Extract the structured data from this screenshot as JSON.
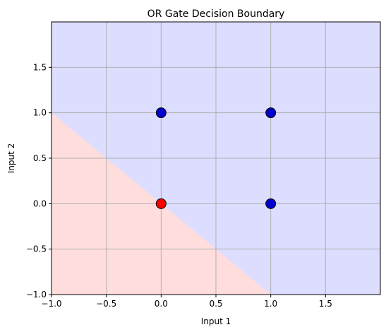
{
  "chart_data": {
    "type": "scatter",
    "title": "OR Gate Decision Boundary",
    "xlabel": "Input 1",
    "ylabel": "Input 2",
    "xlim": [
      -1.0,
      2.0
    ],
    "ylim": [
      -1.0,
      2.0
    ],
    "xticks": [
      -1.0,
      -0.5,
      0.0,
      0.5,
      1.0,
      1.5
    ],
    "yticks": [
      -1.0,
      -0.5,
      0.0,
      0.5,
      1.0,
      1.5
    ],
    "xtick_labels": [
      "−1.0",
      "−0.5",
      "0.0",
      "0.5",
      "1.0",
      "1.5"
    ],
    "ytick_labels": [
      "−1.0",
      "−0.5",
      "0.0",
      "0.5",
      "1.0",
      "1.5"
    ],
    "grid": true,
    "decision_boundary": {
      "equation": "x + y = 0",
      "class0_region_color": "#ffdddd",
      "class1_region_color": "#ddddff"
    },
    "points": [
      {
        "x": 0,
        "y": 0,
        "class": 0,
        "color": "#ff0000"
      },
      {
        "x": 0,
        "y": 1,
        "class": 1,
        "color": "#0000cc"
      },
      {
        "x": 1,
        "y": 0,
        "class": 1,
        "color": "#0000cc"
      },
      {
        "x": 1,
        "y": 1,
        "class": 1,
        "color": "#0000cc"
      }
    ]
  }
}
